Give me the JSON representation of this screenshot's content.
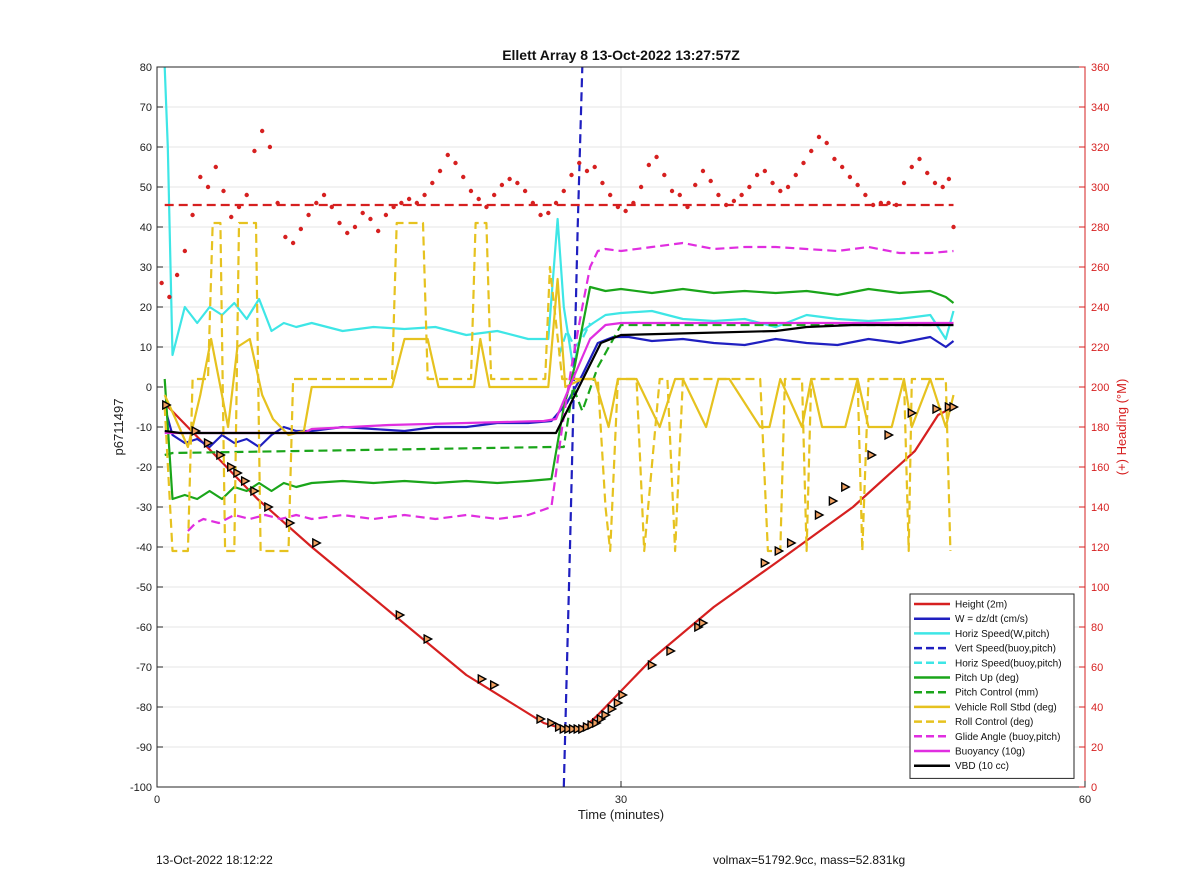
{
  "footer": {
    "left": "13-Oct-2022 18:12:22",
    "right": "volmax=51792.9cc, mass=52.831kg"
  },
  "chart_data": {
    "type": "line",
    "title": "Ellett Array 8 13-Oct-2022 13:27:57Z",
    "xlabel": "Time (minutes)",
    "ylabel": "p6711497",
    "y2label": "(+) Heading (°M)",
    "xlim": [
      0,
      60
    ],
    "ylim": [
      -100,
      80
    ],
    "y2lim": [
      0,
      360
    ],
    "xticks": [
      0,
      30,
      60
    ],
    "yticks": [
      -100,
      -90,
      -80,
      -70,
      -60,
      -50,
      -40,
      -30,
      -20,
      -10,
      0,
      10,
      20,
      30,
      40,
      50,
      60,
      70,
      80
    ],
    "y2ticks": [
      0,
      20,
      40,
      60,
      80,
      100,
      120,
      140,
      160,
      180,
      200,
      220,
      240,
      260,
      280,
      300,
      320,
      340,
      360
    ],
    "grid": true,
    "legend_position": "bottom-right",
    "colors": {
      "red": "#d62020",
      "blue": "#1f1fc0",
      "cyan": "#3ee6e6",
      "green": "#1aa51a",
      "yellow": "#e6c21f",
      "magenta": "#e02ee0",
      "black": "#000000",
      "heading_axis": "#d62020"
    },
    "series": [
      {
        "name": "Height (2m)",
        "color": "#d62020",
        "style": "solid",
        "x": [
          0.6,
          3.5,
          6.5,
          10,
          15,
          20,
          25,
          26.3,
          27,
          27.8,
          28.5,
          29.5,
          32,
          36,
          40,
          45,
          49,
          50.5,
          51.5
        ],
        "y": [
          -4.5,
          -16,
          -28,
          -40,
          -56,
          -72,
          -84,
          -85.5,
          -85.5,
          -84.5,
          -82,
          -78,
          -68,
          -55,
          -44,
          -30,
          -16,
          -7,
          -5
        ]
      },
      {
        "name": "W = dz/dt (cm/s)",
        "color": "#1f1fc0",
        "style": "solid",
        "x": [
          0.5,
          1.0,
          1.8,
          2.6,
          3.4,
          4.2,
          5.0,
          5.8,
          6.6,
          7.4,
          8.2,
          9.0,
          10,
          12,
          14,
          16,
          18,
          20,
          22,
          24,
          25.5,
          26.5,
          27.5,
          28.5,
          29.5,
          30.5,
          32,
          34,
          36,
          38,
          40,
          42,
          44,
          46,
          48,
          50,
          51,
          51.5
        ],
        "y": [
          -5,
          -12,
          -14,
          -13,
          -15,
          -12,
          -14,
          -13,
          -15,
          -12,
          -10,
          -11,
          -11,
          -10,
          -10.5,
          -11,
          -10,
          -10,
          -9,
          -9,
          -8.5,
          -4,
          3,
          11,
          12.5,
          12.5,
          11.5,
          12,
          11,
          10.5,
          12,
          11,
          10.5,
          12,
          11,
          12.5,
          10,
          11.5
        ]
      },
      {
        "name": "Horiz Speed(W,pitch)",
        "color": "#3ee6e6",
        "style": "solid",
        "x": [
          0.5,
          0.7,
          1.0,
          1.8,
          2.6,
          3.4,
          4.2,
          5.0,
          5.8,
          6.6,
          7.4,
          8.2,
          9.0,
          10,
          12,
          14,
          16,
          18,
          20,
          22,
          24,
          25.3,
          25.9,
          26.3,
          26.9,
          27.5,
          28.2,
          29,
          30,
          32,
          34,
          36,
          38,
          40,
          42,
          44,
          46,
          48,
          50,
          51,
          51.5
        ],
        "y": [
          80,
          60,
          8,
          20,
          16,
          20,
          18,
          21,
          17,
          22,
          14,
          16,
          15,
          16,
          14,
          15,
          14.5,
          15,
          13,
          14,
          12,
          12,
          42,
          20,
          5,
          14,
          16,
          18,
          18.5,
          19,
          17,
          16.5,
          17,
          15,
          18,
          17,
          16.5,
          17,
          18,
          12,
          19
        ]
      },
      {
        "name": "Vert Speed(buoy,pitch)",
        "color": "#1f1fc0",
        "style": "dashed",
        "x": [
          26.3,
          26.7,
          27.2,
          27.5
        ],
        "y": [
          -100,
          -40,
          40,
          80
        ]
      },
      {
        "name": "Horiz Speed(buoy,pitch)",
        "color": "#3ee6e6",
        "style": "dashed",
        "x": [
          26.0,
          26.5,
          27.0,
          27.5,
          28.0
        ],
        "y": [
          8,
          14,
          10,
          12,
          16
        ]
      },
      {
        "name": "Pitch Up (deg)",
        "color": "#1aa51a",
        "style": "solid",
        "x": [
          0.5,
          1.0,
          1.8,
          2.6,
          3.4,
          4.2,
          5.0,
          5.8,
          6.6,
          7.4,
          8.2,
          9.0,
          10,
          12,
          14,
          16,
          18,
          20,
          22,
          24,
          25.5,
          26.3,
          27.0,
          27.5,
          28.0,
          29.0,
          30,
          32,
          34,
          36,
          38,
          40,
          42,
          44,
          46,
          48,
          50,
          51,
          51.5
        ],
        "y": [
          2,
          -28,
          -27,
          -28,
          -26,
          -28,
          -25,
          -26,
          -24,
          -26,
          -24,
          -25,
          -24,
          -23.5,
          -24,
          -23.5,
          -24,
          -23.5,
          -24,
          -23.5,
          -23,
          -5,
          5,
          15,
          25,
          24,
          24.5,
          23.5,
          24.5,
          23.5,
          24,
          23.5,
          24,
          23,
          24.5,
          23.5,
          24,
          22.5,
          21
        ]
      },
      {
        "name": "Pitch Control (mm)",
        "color": "#1aa51a",
        "style": "dashed",
        "x": [
          0.5,
          1.0,
          25.5,
          26.3,
          26.9,
          27.5,
          28.5,
          30,
          51.5
        ],
        "y": [
          -17,
          -16.5,
          -15,
          -15,
          0,
          -6,
          5,
          15.5,
          15.5
        ]
      },
      {
        "name": "Vehicle Roll Stbd (deg)",
        "color": "#e6c21f",
        "style": "solid",
        "x": [
          0.5,
          1.2,
          2.0,
          2.8,
          3.5,
          4.0,
          4.6,
          5.2,
          6.0,
          6.8,
          7.5,
          8.5,
          9.5,
          10,
          12,
          14,
          15.2,
          16.0,
          17.5,
          18.2,
          19.0,
          20.5,
          20.9,
          21.5,
          22.2,
          24,
          25.3,
          25.9,
          26.4,
          27.5,
          28.3,
          29.2,
          29.8,
          31.0,
          32.5,
          33.5,
          34.0,
          35.5,
          36.3,
          37.0,
          39.0,
          39.6,
          40.3,
          41.7,
          42.3,
          43.0,
          44.5,
          45.3,
          46.0,
          47.5,
          48.3,
          48.8,
          50.0,
          51.0,
          51.5
        ],
        "y": [
          -2,
          -8,
          -15,
          -2,
          12,
          2,
          -10,
          10,
          12,
          -2,
          -8,
          -12,
          -11,
          0,
          0,
          0,
          0,
          12,
          12,
          0,
          0,
          0,
          12,
          0,
          0,
          0,
          0,
          27,
          0,
          2,
          2,
          -10,
          2,
          2,
          -10,
          2,
          2,
          -10,
          2,
          2,
          -10,
          -10,
          2,
          -10,
          2,
          -10,
          -10,
          2,
          -10,
          -10,
          2,
          -10,
          2,
          -10,
          -2
        ]
      },
      {
        "name": "Roll Control (deg)",
        "color": "#e6c21f",
        "style": "dashed",
        "x": [
          0.5,
          1.0,
          2.0,
          2.3,
          3.3,
          3.6,
          4.1,
          4.4,
          5.0,
          5.3,
          6.4,
          6.7,
          8.5,
          8.8,
          9.8,
          10.1,
          15.2,
          15.5,
          17.2,
          17.5,
          20.3,
          20.6,
          21.3,
          21.6,
          25.1,
          25.4,
          26.2,
          26.5,
          27.0,
          28.5,
          29.0,
          29.3,
          29.8,
          31.0,
          31.5,
          32.5,
          33.0,
          33.5,
          34.0,
          34.5,
          39.0,
          39.5,
          40.3,
          40.6,
          41.7,
          42.0,
          42.3,
          43.0,
          45.3,
          45.6,
          46.0,
          47.5,
          48.3,
          48.6,
          48.8,
          51.0,
          51.3
        ],
        "y": [
          -5,
          -41,
          -41,
          2,
          2,
          41,
          41,
          -41,
          -41,
          41,
          41,
          -41,
          -41,
          2,
          2,
          2,
          2,
          41,
          41,
          2,
          2,
          41,
          41,
          2,
          2,
          30,
          2,
          2,
          2,
          2,
          -30,
          -41,
          2,
          2,
          -41,
          2,
          2,
          -41,
          2,
          2,
          2,
          -41,
          -41,
          2,
          2,
          -41,
          2,
          2,
          2,
          -41,
          2,
          2,
          2,
          -41,
          2,
          2,
          -41
        ]
      },
      {
        "name": "Glide Angle (buoy,pitch)",
        "color": "#e02ee0",
        "style": "dashed",
        "x": [
          2.0,
          2.5,
          3.0,
          4.0,
          5.0,
          6.0,
          7.0,
          8.0,
          9.0,
          10,
          12,
          14,
          16,
          18,
          20,
          22,
          24,
          25.5,
          26.2,
          26.8,
          27.5,
          28.0,
          28.5,
          29.0,
          30,
          32,
          34,
          36,
          38,
          40,
          42,
          44,
          46,
          48,
          50,
          51.5
        ],
        "y": [
          -36,
          -34,
          -33,
          -34,
          -32,
          -33,
          -32,
          -33,
          -32,
          -33,
          -32,
          -33,
          -32,
          -33,
          -32,
          -33,
          -32,
          -30,
          -10,
          5,
          20,
          30,
          34,
          34.5,
          34,
          35,
          36,
          34.5,
          35,
          35,
          34.5,
          34,
          35,
          33.5,
          33.5,
          34
        ]
      },
      {
        "name": "Buoyancy (10g)",
        "color": "#e02ee0",
        "style": "solid",
        "x": [
          0.5,
          9.5,
          10,
          15,
          20,
          25,
          25.8,
          27,
          28.0,
          29,
          30,
          35,
          40,
          45,
          51.5
        ],
        "y": [
          -11.5,
          -11.5,
          -10.5,
          -9.5,
          -9,
          -8.5,
          -8,
          3,
          12,
          15.5,
          16,
          16,
          16,
          16,
          16
        ]
      },
      {
        "name": "VBD (10 cc)",
        "color": "#000000",
        "style": "solid",
        "x": [
          0.5,
          1.5,
          10,
          20,
          25.8,
          28.7,
          30,
          35,
          40,
          42,
          45,
          51.5
        ],
        "y": [
          -11,
          -11.5,
          -11.5,
          -11.5,
          -11.5,
          11,
          13,
          13.5,
          14,
          15,
          15.5,
          15.5
        ]
      },
      {
        "name": "",
        "color": "#d62020",
        "style": "dashed",
        "axis": "y2",
        "x": [
          0.5,
          51.5
        ],
        "y": [
          291,
          291
        ]
      },
      {
        "name": "",
        "color": "#d62020",
        "style": "dots",
        "axis": "y2",
        "x": [
          0.3,
          0.8,
          1.3,
          1.8,
          2.3,
          2.8,
          3.3,
          3.8,
          4.3,
          4.8,
          5.3,
          5.8,
          6.3,
          6.8,
          7.3,
          7.8,
          8.3,
          8.8,
          9.3,
          9.8,
          10.3,
          10.8,
          11.3,
          11.8,
          12.3,
          12.8,
          13.3,
          13.8,
          14.3,
          14.8,
          15.3,
          15.8,
          16.3,
          16.8,
          17.3,
          17.8,
          18.3,
          18.8,
          19.3,
          19.8,
          20.3,
          20.8,
          21.3,
          21.8,
          22.3,
          22.8,
          23.3,
          23.8,
          24.3,
          24.8,
          25.3,
          25.8,
          26.3,
          26.8,
          27.3,
          27.8,
          28.3,
          28.8,
          29.3,
          29.8,
          30.3,
          30.8,
          31.3,
          31.8,
          32.3,
          32.8,
          33.3,
          33.8,
          34.3,
          34.8,
          35.3,
          35.8,
          36.3,
          36.8,
          37.3,
          37.8,
          38.3,
          38.8,
          39.3,
          39.8,
          40.3,
          40.8,
          41.3,
          41.8,
          42.3,
          42.8,
          43.3,
          43.8,
          44.3,
          44.8,
          45.3,
          45.8,
          46.3,
          46.8,
          47.3,
          47.8,
          48.3,
          48.8,
          49.3,
          49.8,
          50.3,
          50.8,
          51.2,
          51.5
        ],
        "y": [
          252,
          245,
          256,
          268,
          286,
          305,
          300,
          310,
          298,
          285,
          290,
          296,
          318,
          328,
          320,
          292,
          275,
          272,
          279,
          286,
          292,
          296,
          290,
          282,
          277,
          280,
          287,
          284,
          278,
          286,
          290,
          292,
          294,
          292,
          296,
          302,
          308,
          316,
          312,
          305,
          298,
          294,
          290,
          296,
          301,
          304,
          302,
          298,
          292,
          286,
          287,
          292,
          298,
          306,
          312,
          308,
          310,
          302,
          296,
          290,
          288,
          292,
          300,
          311,
          315,
          306,
          298,
          296,
          290,
          301,
          308,
          303,
          296,
          291,
          293,
          296,
          300,
          306,
          308,
          302,
          298,
          300,
          306,
          312,
          318,
          325,
          322,
          314,
          310,
          305,
          301,
          296,
          291,
          292,
          292,
          291,
          302,
          310,
          314,
          307,
          302,
          300,
          304,
          280
        ]
      },
      {
        "name": "",
        "color": "#000000",
        "style": "triangles",
        "x": [
          0.6,
          2.5,
          3.3,
          4.1,
          4.8,
          5.2,
          5.7,
          6.3,
          7.2,
          8.6,
          10.3,
          15.7,
          17.5,
          21,
          21.8,
          24.8,
          25.5,
          26,
          26.3,
          26.6,
          26.9,
          27.2,
          27.5,
          27.8,
          28.1,
          28.4,
          28.7,
          29.0,
          29.4,
          29.8,
          30.1,
          32.0,
          33.2,
          35.0,
          35.3,
          39.3,
          40.2,
          41.0,
          42.8,
          43.7,
          44.5,
          46.2,
          47.3,
          48.8,
          50.4,
          51.2,
          51.5
        ],
        "y": [
          -4.5,
          -11,
          -14,
          -17,
          -20,
          -21.5,
          -23.5,
          -26,
          -30,
          -34,
          -39,
          -57,
          -63,
          -73,
          -74.5,
          -83,
          -84,
          -85,
          -85.5,
          -85.5,
          -85.5,
          -85.5,
          -85.5,
          -85,
          -84.5,
          -84,
          -83,
          -82,
          -80.5,
          -79,
          -77,
          -69.5,
          -66,
          -60,
          -59,
          -44,
          -41,
          -39,
          -32,
          -28.5,
          -25,
          -17,
          -12,
          -6.5,
          -5.5,
          -5,
          -5
        ]
      }
    ]
  }
}
